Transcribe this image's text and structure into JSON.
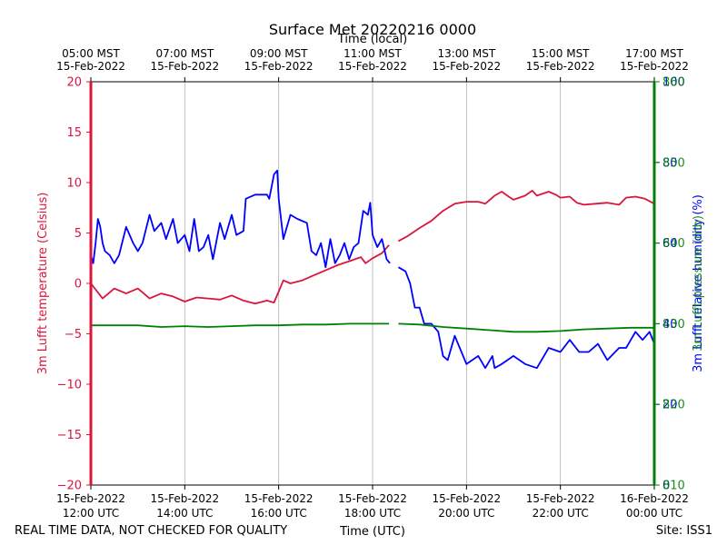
{
  "chart_data": {
    "type": "line",
    "title": "Surface Met 20220216 0000",
    "top_axis_label": "Time (local)",
    "xlabel": "Time (UTC)",
    "footer_left": "REAL TIME DATA, NOT CHECKED FOR QUALITY",
    "footer_right": "Site: ISS1",
    "x_range_hours_utc": [
      12.0,
      24.0
    ],
    "x_ticks_bottom": [
      {
        "hour": 12,
        "line1": "15-Feb-2022",
        "line2": "12:00 UTC"
      },
      {
        "hour": 14,
        "line1": "15-Feb-2022",
        "line2": "14:00 UTC"
      },
      {
        "hour": 16,
        "line1": "15-Feb-2022",
        "line2": "16:00 UTC"
      },
      {
        "hour": 18,
        "line1": "15-Feb-2022",
        "line2": "18:00 UTC"
      },
      {
        "hour": 20,
        "line1": "15-Feb-2022",
        "line2": "20:00 UTC"
      },
      {
        "hour": 22,
        "line1": "15-Feb-2022",
        "line2": "22:00 UTC"
      },
      {
        "hour": 24,
        "line1": "16-Feb-2022",
        "line2": "00:00 UTC"
      }
    ],
    "x_ticks_top": [
      {
        "hour": 12,
        "line1": "05:00 MST",
        "line2": "15-Feb-2022"
      },
      {
        "hour": 14,
        "line1": "07:00 MST",
        "line2": "15-Feb-2022"
      },
      {
        "hour": 16,
        "line1": "09:00 MST",
        "line2": "15-Feb-2022"
      },
      {
        "hour": 18,
        "line1": "11:00 MST",
        "line2": "15-Feb-2022"
      },
      {
        "hour": 20,
        "line1": "13:00 MST",
        "line2": "15-Feb-2022"
      },
      {
        "hour": 22,
        "line1": "15:00 MST",
        "line2": "15-Feb-2022"
      },
      {
        "hour": 24,
        "line1": "17:00 MST",
        "line2": "15-Feb-2022"
      }
    ],
    "grid": "vertical",
    "axes": {
      "left": {
        "label": "3m Lufft temperature (Celsius)",
        "range": [
          -20,
          20
        ],
        "ticks": [
          "−20",
          "−15",
          "−10",
          "−5",
          "0",
          "5",
          "10",
          "15",
          "20"
        ],
        "color": "#dc143c"
      },
      "right_rh": {
        "label": "3m Lufft relative humidity (%)",
        "range": [
          0,
          100
        ],
        "ticks": [
          "0",
          "20",
          "40",
          "60",
          "80",
          "100"
        ],
        "color": "#0000ff"
      },
      "right_pressure": {
        "label": "3m Lufft pressure (mb)",
        "range": [
          810,
          860
        ],
        "ticks": [
          "810",
          "820",
          "830",
          "840",
          "850",
          "860"
        ],
        "color": "#008000"
      }
    },
    "series": [
      {
        "axis": "left",
        "color": "#dc143c",
        "segments": [
          [
            [
              12.0,
              0.0
            ],
            [
              12.25,
              -1.5
            ],
            [
              12.5,
              -0.5
            ],
            [
              12.75,
              -1.0
            ],
            [
              13.0,
              -0.5
            ],
            [
              13.25,
              -1.5
            ],
            [
              13.5,
              -1.0
            ],
            [
              13.75,
              -1.3
            ],
            [
              14.0,
              -1.8
            ],
            [
              14.25,
              -1.4
            ],
            [
              14.5,
              -1.5
            ],
            [
              14.75,
              -1.6
            ],
            [
              15.0,
              -1.2
            ],
            [
              15.25,
              -1.7
            ],
            [
              15.5,
              -2.0
            ],
            [
              15.75,
              -1.7
            ],
            [
              15.9,
              -1.9
            ],
            [
              16.0,
              -0.8
            ],
            [
              16.1,
              0.3
            ],
            [
              16.25,
              0.0
            ],
            [
              16.5,
              0.3
            ],
            [
              16.75,
              0.8
            ],
            [
              17.0,
              1.3
            ],
            [
              17.25,
              1.8
            ],
            [
              17.5,
              2.2
            ],
            [
              17.75,
              2.6
            ],
            [
              17.85,
              2.0
            ],
            [
              18.0,
              2.5
            ],
            [
              18.2,
              3.0
            ],
            [
              18.35,
              3.8
            ]
          ],
          [
            [
              18.55,
              4.2
            ],
            [
              18.75,
              4.7
            ],
            [
              19.0,
              5.5
            ],
            [
              19.25,
              6.2
            ],
            [
              19.5,
              7.2
            ],
            [
              19.75,
              7.9
            ],
            [
              20.0,
              8.1
            ],
            [
              20.25,
              8.1
            ],
            [
              20.4,
              7.9
            ],
            [
              20.6,
              8.7
            ],
            [
              20.75,
              9.1
            ],
            [
              20.9,
              8.6
            ],
            [
              21.0,
              8.3
            ],
            [
              21.25,
              8.7
            ],
            [
              21.4,
              9.2
            ],
            [
              21.5,
              8.7
            ],
            [
              21.75,
              9.1
            ],
            [
              21.9,
              8.8
            ],
            [
              22.0,
              8.5
            ],
            [
              22.2,
              8.6
            ],
            [
              22.35,
              8.0
            ],
            [
              22.5,
              7.8
            ],
            [
              22.75,
              7.9
            ],
            [
              23.0,
              8.0
            ],
            [
              23.25,
              7.8
            ],
            [
              23.4,
              8.5
            ],
            [
              23.6,
              8.6
            ],
            [
              23.8,
              8.4
            ],
            [
              24.0,
              7.9
            ]
          ]
        ]
      },
      {
        "axis": "right_rh",
        "color": "#0000ff",
        "segments": [
          [
            [
              12.0,
              57
            ],
            [
              12.05,
              55
            ],
            [
              12.1,
              60
            ],
            [
              12.15,
              66
            ],
            [
              12.2,
              64
            ],
            [
              12.25,
              60
            ],
            [
              12.3,
              58
            ],
            [
              12.4,
              57
            ],
            [
              12.5,
              55
            ],
            [
              12.6,
              57
            ],
            [
              12.75,
              64
            ],
            [
              12.9,
              60
            ],
            [
              13.0,
              58
            ],
            [
              13.1,
              60
            ],
            [
              13.25,
              67
            ],
            [
              13.35,
              63
            ],
            [
              13.5,
              65
            ],
            [
              13.6,
              61
            ],
            [
              13.75,
              66
            ],
            [
              13.85,
              60
            ],
            [
              14.0,
              62
            ],
            [
              14.1,
              58
            ],
            [
              14.2,
              66
            ],
            [
              14.3,
              58
            ],
            [
              14.4,
              59
            ],
            [
              14.5,
              62
            ],
            [
              14.6,
              56
            ],
            [
              14.75,
              65
            ],
            [
              14.85,
              61
            ],
            [
              15.0,
              67
            ],
            [
              15.1,
              62
            ],
            [
              15.25,
              63
            ],
            [
              15.3,
              71
            ],
            [
              15.5,
              72
            ],
            [
              15.75,
              72
            ],
            [
              15.8,
              71
            ],
            [
              15.9,
              77
            ],
            [
              15.97,
              78
            ],
            [
              16.0,
              71
            ],
            [
              16.1,
              61
            ],
            [
              16.25,
              67
            ],
            [
              16.4,
              66
            ],
            [
              16.6,
              65
            ],
            [
              16.7,
              58
            ],
            [
              16.8,
              57
            ],
            [
              16.9,
              60
            ],
            [
              17.0,
              54
            ],
            [
              17.1,
              61
            ],
            [
              17.2,
              55
            ],
            [
              17.3,
              57
            ],
            [
              17.4,
              60
            ],
            [
              17.5,
              56
            ],
            [
              17.6,
              59
            ],
            [
              17.7,
              60
            ],
            [
              17.8,
              68
            ],
            [
              17.9,
              67
            ],
            [
              17.95,
              70
            ],
            [
              18.0,
              62
            ],
            [
              18.1,
              59
            ],
            [
              18.2,
              61
            ],
            [
              18.3,
              56
            ],
            [
              18.37,
              55
            ]
          ],
          [
            [
              18.55,
              54
            ],
            [
              18.7,
              53
            ],
            [
              18.8,
              50
            ],
            [
              18.9,
              44
            ],
            [
              19.0,
              44
            ],
            [
              19.1,
              40
            ],
            [
              19.25,
              40
            ],
            [
              19.4,
              38
            ],
            [
              19.5,
              32
            ],
            [
              19.6,
              31
            ],
            [
              19.75,
              37
            ],
            [
              20.0,
              30
            ],
            [
              20.25,
              32
            ],
            [
              20.4,
              29
            ],
            [
              20.55,
              32
            ],
            [
              20.6,
              29
            ],
            [
              20.75,
              30
            ],
            [
              21.0,
              32
            ],
            [
              21.25,
              30
            ],
            [
              21.5,
              29
            ],
            [
              21.75,
              34
            ],
            [
              22.0,
              33
            ],
            [
              22.2,
              36
            ],
            [
              22.4,
              33
            ],
            [
              22.6,
              33
            ],
            [
              22.8,
              35
            ],
            [
              23.0,
              31
            ],
            [
              23.25,
              34
            ],
            [
              23.4,
              34
            ],
            [
              23.6,
              38
            ],
            [
              23.75,
              36
            ],
            [
              23.9,
              38
            ],
            [
              24.0,
              35
            ]
          ]
        ]
      },
      {
        "axis": "right_pressure",
        "color": "#008000",
        "segments": [
          [
            [
              12.0,
              829.8
            ],
            [
              13.0,
              829.8
            ],
            [
              13.5,
              829.6
            ],
            [
              14.0,
              829.7
            ],
            [
              14.5,
              829.6
            ],
            [
              15.0,
              829.7
            ],
            [
              15.5,
              829.8
            ],
            [
              16.0,
              829.8
            ],
            [
              16.5,
              829.9
            ],
            [
              17.0,
              829.9
            ],
            [
              17.5,
              830.0
            ],
            [
              18.0,
              830.0
            ],
            [
              18.35,
              830.0
            ]
          ],
          [
            [
              18.55,
              830.0
            ],
            [
              19.0,
              829.9
            ],
            [
              19.5,
              829.6
            ],
            [
              20.0,
              829.4
            ],
            [
              20.5,
              829.2
            ],
            [
              21.0,
              829.0
            ],
            [
              21.5,
              829.0
            ],
            [
              22.0,
              829.1
            ],
            [
              22.5,
              829.3
            ],
            [
              23.0,
              829.4
            ],
            [
              23.5,
              829.5
            ],
            [
              24.0,
              829.5
            ]
          ]
        ]
      }
    ]
  }
}
